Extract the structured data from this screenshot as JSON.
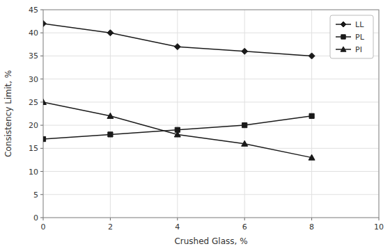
{
  "chart_data": {
    "type": "line",
    "x": [
      0,
      2,
      4,
      6,
      8
    ],
    "series": [
      {
        "name": "LL",
        "color": "#1a1a1a",
        "marker": "diamond",
        "values": [
          42,
          40,
          37,
          36,
          35
        ]
      },
      {
        "name": "PL",
        "color": "#1a1a1a",
        "marker": "square",
        "values": [
          17,
          18,
          19,
          20,
          22
        ]
      },
      {
        "name": "PI",
        "color": "#1a1a1a",
        "marker": "triangle",
        "values": [
          25,
          22,
          18,
          16,
          13
        ]
      }
    ],
    "xlabel": "Crushed Glass, %",
    "ylabel": "Consistency Limit, %",
    "xlim": [
      0,
      10
    ],
    "ylim": [
      0,
      45
    ],
    "xticks": [
      0,
      2,
      4,
      6,
      8,
      10
    ],
    "yticks": [
      0,
      5,
      10,
      15,
      20,
      25,
      30,
      35,
      40,
      45
    ],
    "grid": true,
    "legend": "upper right"
  }
}
